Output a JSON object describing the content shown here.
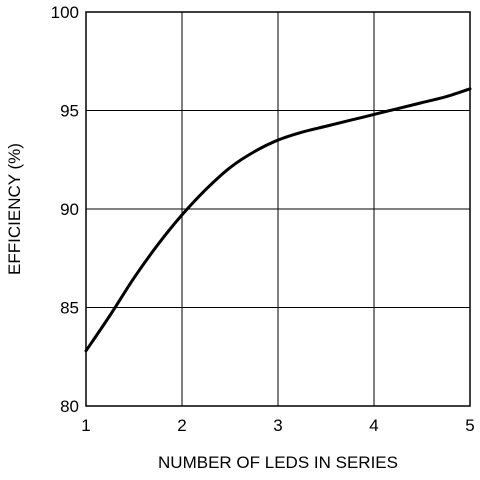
{
  "chart_data": {
    "type": "line",
    "title": "",
    "xlabel": "NUMBER OF LEDS IN SERIES",
    "ylabel": "EFFICIENCY (%)",
    "xlim": [
      1,
      5
    ],
    "ylim": [
      80,
      100
    ],
    "x_ticks": [
      "1",
      "2",
      "3",
      "4",
      "5"
    ],
    "y_ticks": [
      "80",
      "85",
      "90",
      "95",
      "100"
    ],
    "grid": true,
    "legend": "none",
    "series": [
      {
        "color": "#000000",
        "x": [
          1.0,
          1.25,
          1.5,
          1.75,
          2.0,
          2.25,
          2.5,
          2.75,
          3.0,
          3.25,
          3.5,
          3.75,
          4.0,
          4.25,
          4.5,
          4.75,
          5.0
        ],
        "y": [
          82.8,
          84.6,
          86.5,
          88.2,
          89.7,
          91.0,
          92.1,
          92.9,
          93.5,
          93.9,
          94.2,
          94.5,
          94.8,
          95.1,
          95.4,
          95.7,
          96.1
        ]
      }
    ]
  }
}
